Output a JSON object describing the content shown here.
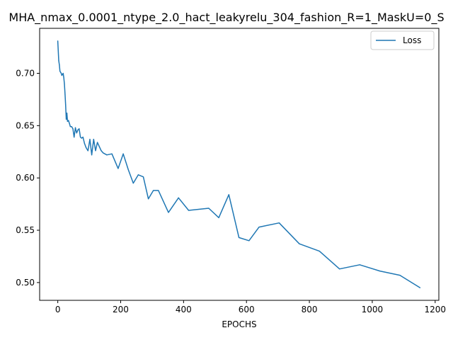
{
  "chart_data": {
    "type": "line",
    "title": "MHA_nmax_0.0001_ntype_2.0_hact_leakyrelu_304_fashion_R=1_MaskU=0_S",
    "xlabel": "EPOCHS",
    "ylabel": "",
    "xlim": [
      -57.7,
      1211.7
    ],
    "ylim": [
      0.483,
      0.743
    ],
    "xticks": [
      0,
      200,
      400,
      600,
      800,
      1000,
      1200
    ],
    "yticks": [
      0.5,
      0.55,
      0.6,
      0.65,
      0.7
    ],
    "xtick_labels": [
      "0",
      "200",
      "400",
      "600",
      "800",
      "1000",
      "1200"
    ],
    "ytick_labels": [
      "0.50",
      "0.55",
      "0.60",
      "0.65",
      "0.70"
    ],
    "grid": false,
    "legend": {
      "position": "top-right",
      "entries": [
        "Loss"
      ]
    },
    "series": [
      {
        "name": "Loss",
        "color": "#1f77b4",
        "x": [
          0,
          3,
          5,
          7,
          9,
          11,
          13,
          15,
          17,
          19,
          21,
          23,
          25,
          27,
          29,
          31,
          34,
          37,
          40,
          44,
          48,
          52,
          56,
          60,
          64,
          68,
          72,
          76,
          80,
          85,
          90,
          96,
          102,
          108,
          114,
          120,
          126,
          132,
          138,
          144,
          156,
          172,
          192,
          208,
          224,
          240,
          256,
          272,
          288,
          304,
          320,
          352,
          384,
          416,
          480,
          512,
          544,
          576,
          608,
          640,
          704,
          768,
          832,
          896,
          960,
          1024,
          1088,
          1152
        ],
        "values": [
          0.731,
          0.712,
          0.708,
          0.702,
          0.701,
          0.7,
          0.698,
          0.699,
          0.7,
          0.696,
          0.69,
          0.68,
          0.67,
          0.656,
          0.662,
          0.654,
          0.655,
          0.652,
          0.649,
          0.649,
          0.647,
          0.639,
          0.648,
          0.643,
          0.646,
          0.647,
          0.639,
          0.638,
          0.639,
          0.633,
          0.629,
          0.626,
          0.637,
          0.622,
          0.637,
          0.626,
          0.634,
          0.63,
          0.626,
          0.624,
          0.622,
          0.623,
          0.609,
          0.623,
          0.608,
          0.595,
          0.603,
          0.601,
          0.58,
          0.588,
          0.588,
          0.567,
          0.581,
          0.569,
          0.571,
          0.562,
          0.584,
          0.543,
          0.54,
          0.553,
          0.557,
          0.537,
          0.53,
          0.513,
          0.517,
          0.511,
          0.507,
          0.495
        ]
      }
    ]
  }
}
